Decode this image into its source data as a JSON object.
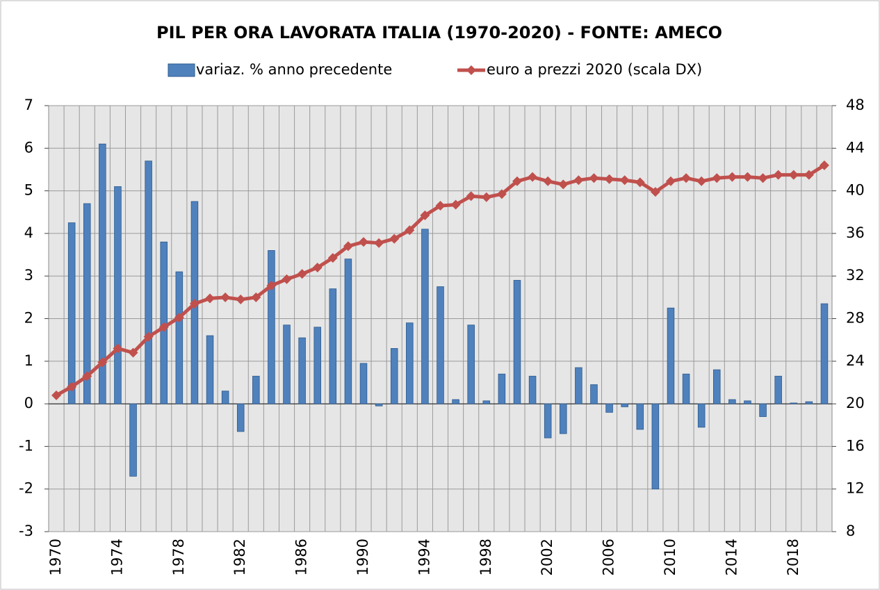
{
  "chart_data": {
    "type": "bar-line",
    "title": "PIL PER ORA LAVORATA ITALIA (1970-2020) - FONTE: AMECO",
    "categories": [
      "1970",
      null,
      null,
      null,
      "1974",
      null,
      null,
      null,
      "1978",
      null,
      null,
      null,
      "1982",
      null,
      null,
      null,
      "1986",
      null,
      null,
      null,
      "1990",
      null,
      null,
      null,
      "1994",
      null,
      null,
      null,
      "1998",
      null,
      null,
      null,
      "2002",
      null,
      null,
      null,
      "2006",
      null,
      null,
      null,
      "2010",
      null,
      null,
      null,
      "2014",
      null,
      null,
      null,
      "2018",
      null,
      null
    ],
    "series": [
      {
        "name": "variaz. % anno precedente",
        "color": "#4f81bd",
        "type": "bar",
        "values": [
          null,
          4.25,
          4.7,
          6.1,
          5.1,
          -1.7,
          5.7,
          3.8,
          3.1,
          4.75,
          1.6,
          0.3,
          -0.65,
          0.65,
          3.6,
          1.85,
          1.55,
          1.8,
          2.7,
          3.4,
          0.95,
          -0.05,
          1.3,
          1.9,
          4.1,
          2.75,
          0.1,
          1.85,
          0.07,
          0.7,
          2.9,
          0.65,
          -0.8,
          -0.7,
          0.85,
          0.45,
          -0.2,
          -0.07,
          -0.6,
          -2.0,
          2.25,
          0.7,
          -0.55,
          0.8,
          0.1,
          0.07,
          -0.3,
          0.65,
          0.02,
          0.05,
          2.35
        ]
      },
      {
        "name": "euro a prezzi 2020 (scala DX)",
        "color": "#c0504d",
        "type": "line",
        "axis": "y2",
        "values": [
          20.8,
          21.6,
          22.6,
          23.9,
          25.2,
          24.8,
          26.3,
          27.2,
          28.1,
          29.4,
          29.9,
          30.0,
          29.8,
          30.0,
          31.1,
          31.7,
          32.2,
          32.8,
          33.7,
          34.8,
          35.2,
          35.1,
          35.5,
          36.3,
          37.7,
          38.6,
          38.7,
          39.5,
          39.4,
          39.7,
          40.9,
          41.3,
          40.9,
          40.6,
          41.0,
          41.2,
          41.1,
          41.0,
          40.8,
          39.9,
          40.9,
          41.2,
          40.9,
          41.2,
          41.3,
          41.3,
          41.2,
          41.5,
          41.5,
          41.5,
          42.4
        ]
      }
    ],
    "ylim": [
      -3,
      7
    ],
    "yticks": [
      -3,
      -2,
      -1,
      0,
      1,
      2,
      3,
      4,
      5,
      6,
      7
    ],
    "y2lim": [
      8,
      48
    ],
    "y2ticks": [
      8,
      12,
      16,
      20,
      24,
      28,
      32,
      36,
      40,
      44,
      48
    ],
    "grid": true,
    "legend": "top"
  }
}
